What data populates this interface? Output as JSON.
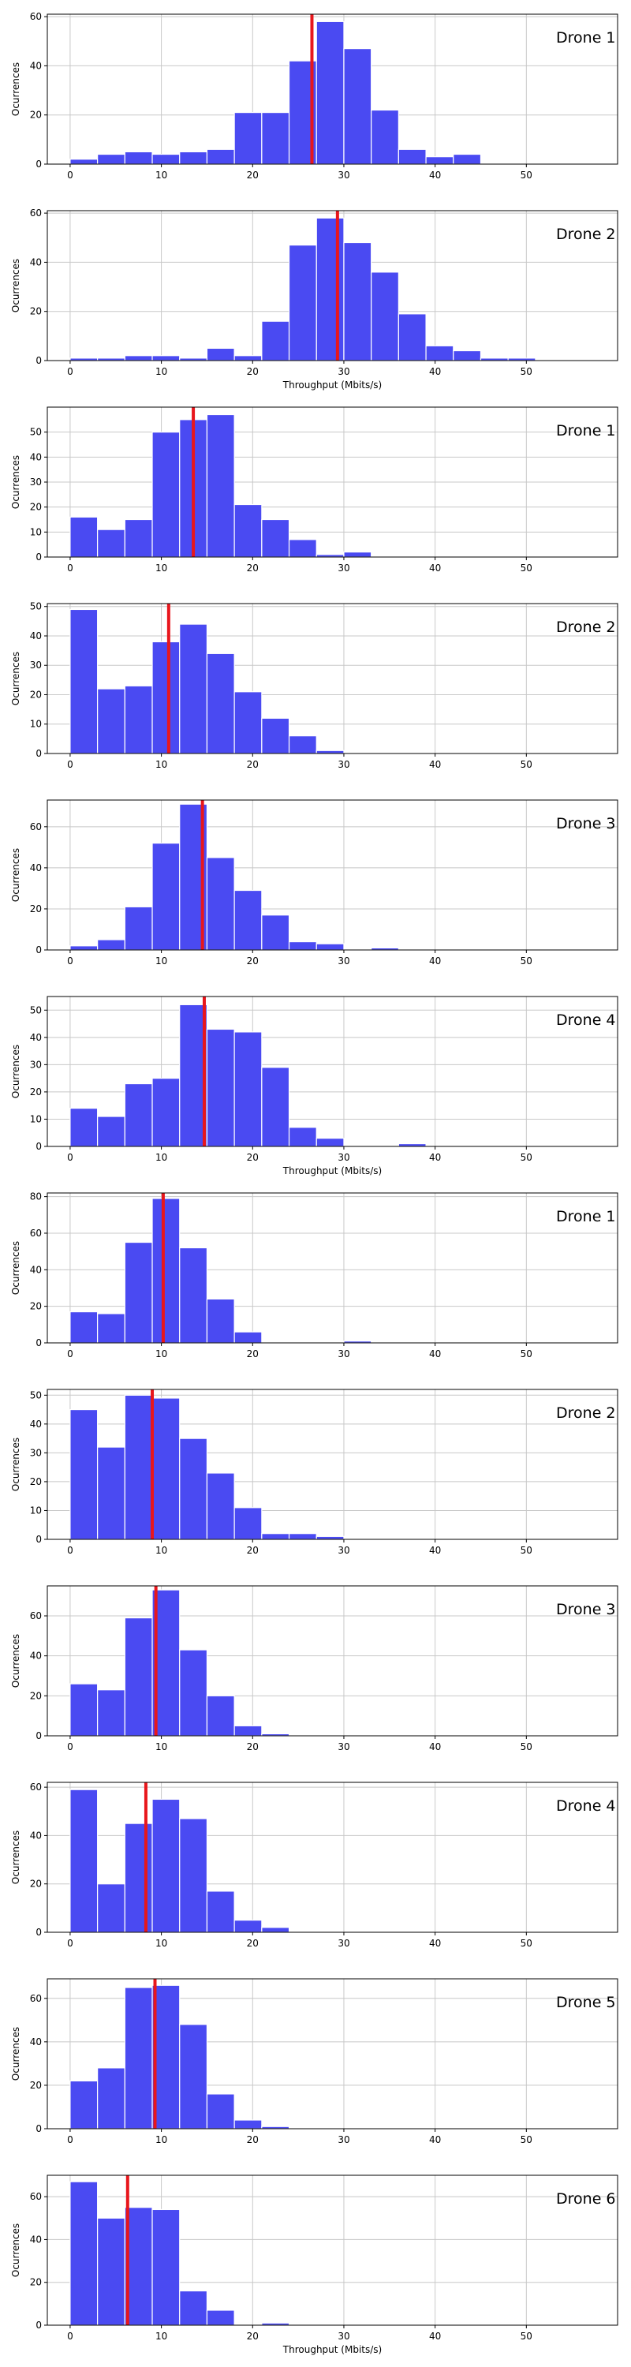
{
  "chart_data": [
    {
      "type": "bar",
      "title": "",
      "label": "Drone 1",
      "xlabel": "",
      "ylabel": "Ocurrences",
      "xlim": [
        -2.5,
        60
      ],
      "ylim": [
        0,
        61
      ],
      "yticks": [
        0,
        20,
        40,
        60
      ],
      "xticks": [
        0,
        10,
        20,
        30,
        40,
        50
      ],
      "bin_width": 3,
      "bin_starts": [
        0,
        3,
        6,
        9,
        12,
        15,
        18,
        21,
        24,
        27,
        30,
        33,
        36,
        39,
        42
      ],
      "values": [
        2,
        4,
        5,
        4,
        5,
        6,
        21,
        21,
        42,
        58,
        47,
        22,
        6,
        3,
        4
      ],
      "mean_line": 26.5
    },
    {
      "type": "bar",
      "title": "",
      "label": "Drone 2",
      "xlabel": "Throughput (Mbits/s)",
      "ylabel": "Ocurrences",
      "xlim": [
        -2.5,
        60
      ],
      "ylim": [
        0,
        61
      ],
      "yticks": [
        0,
        20,
        40,
        60
      ],
      "xticks": [
        0,
        10,
        20,
        30,
        40,
        50
      ],
      "bin_width": 3,
      "bin_starts": [
        0,
        3,
        6,
        9,
        12,
        15,
        18,
        21,
        24,
        27,
        30,
        33,
        36,
        39,
        42,
        45,
        48
      ],
      "values": [
        1,
        1,
        2,
        2,
        1,
        5,
        2,
        16,
        47,
        58,
        48,
        36,
        19,
        6,
        4,
        1,
        1
      ],
      "mean_line": 29.3
    },
    {
      "type": "bar",
      "title": "",
      "label": "Drone 1",
      "xlabel": "",
      "ylabel": "Ocurrences",
      "xlim": [
        -2.5,
        60
      ],
      "ylim": [
        0,
        60
      ],
      "yticks": [
        0,
        10,
        20,
        30,
        40,
        50
      ],
      "xticks": [
        0,
        10,
        20,
        30,
        40,
        50
      ],
      "bin_width": 3,
      "bin_starts": [
        0,
        3,
        6,
        9,
        12,
        15,
        18,
        21,
        24,
        27,
        30
      ],
      "values": [
        16,
        11,
        15,
        50,
        55,
        57,
        21,
        15,
        7,
        1,
        2
      ],
      "mean_line": 13.5
    },
    {
      "type": "bar",
      "title": "",
      "label": "Drone 2",
      "xlabel": "",
      "ylabel": "Ocurrences",
      "xlim": [
        -2.5,
        60
      ],
      "ylim": [
        0,
        51
      ],
      "yticks": [
        0,
        10,
        20,
        30,
        40,
        50
      ],
      "xticks": [
        0,
        10,
        20,
        30,
        40,
        50
      ],
      "bin_width": 3,
      "bin_starts": [
        0,
        3,
        6,
        9,
        12,
        15,
        18,
        21,
        24,
        27
      ],
      "values": [
        49,
        22,
        23,
        38,
        44,
        34,
        21,
        12,
        6,
        1
      ],
      "mean_line": 10.8
    },
    {
      "type": "bar",
      "title": "",
      "label": "Drone 3",
      "xlabel": "",
      "ylabel": "Ocurrences",
      "xlim": [
        -2.5,
        60
      ],
      "ylim": [
        0,
        73
      ],
      "yticks": [
        0,
        20,
        40,
        60
      ],
      "xticks": [
        0,
        10,
        20,
        30,
        40,
        50
      ],
      "bin_width": 3,
      "bin_starts": [
        0,
        3,
        6,
        9,
        12,
        15,
        18,
        21,
        24,
        27,
        30,
        33
      ],
      "values": [
        2,
        5,
        21,
        52,
        71,
        45,
        29,
        17,
        4,
        3,
        0,
        1
      ],
      "mean_line": 14.5
    },
    {
      "type": "bar",
      "title": "",
      "label": "Drone 4",
      "xlabel": "Throughput (Mbits/s)",
      "ylabel": "Ocurrences",
      "xlim": [
        -2.5,
        60
      ],
      "ylim": [
        0,
        55
      ],
      "yticks": [
        0,
        10,
        20,
        30,
        40,
        50
      ],
      "xticks": [
        0,
        10,
        20,
        30,
        40,
        50
      ],
      "bin_width": 3,
      "bin_starts": [
        0,
        3,
        6,
        9,
        12,
        15,
        18,
        21,
        24,
        27,
        30,
        33,
        36
      ],
      "values": [
        14,
        11,
        23,
        25,
        52,
        43,
        42,
        29,
        7,
        3,
        0,
        0,
        1
      ],
      "mean_line": 14.7
    },
    {
      "type": "bar",
      "title": "",
      "label": "Drone 1",
      "xlabel": "",
      "ylabel": "Ocurrences",
      "xlim": [
        -2.5,
        60
      ],
      "ylim": [
        0,
        82
      ],
      "yticks": [
        0,
        20,
        40,
        60,
        80
      ],
      "xticks": [
        0,
        10,
        20,
        30,
        40,
        50
      ],
      "bin_width": 3,
      "bin_starts": [
        0,
        3,
        6,
        9,
        12,
        15,
        18,
        21,
        24,
        27,
        30
      ],
      "values": [
        17,
        16,
        55,
        79,
        52,
        24,
        6,
        0,
        0,
        0,
        1
      ],
      "mean_line": 10.2
    },
    {
      "type": "bar",
      "title": "",
      "label": "Drone 2",
      "xlabel": "",
      "ylabel": "Ocurrences",
      "xlim": [
        -2.5,
        60
      ],
      "ylim": [
        0,
        52
      ],
      "yticks": [
        0,
        10,
        20,
        30,
        40,
        50
      ],
      "xticks": [
        0,
        10,
        20,
        30,
        40,
        50
      ],
      "bin_width": 3,
      "bin_starts": [
        0,
        3,
        6,
        9,
        12,
        15,
        18,
        21,
        24,
        27
      ],
      "values": [
        45,
        32,
        50,
        49,
        35,
        23,
        11,
        2,
        2,
        1
      ],
      "mean_line": 9.0
    },
    {
      "type": "bar",
      "title": "",
      "label": "Drone 3",
      "xlabel": "",
      "ylabel": "Ocurrences",
      "xlim": [
        -2.5,
        60
      ],
      "ylim": [
        0,
        75
      ],
      "yticks": [
        0,
        20,
        40,
        60
      ],
      "xticks": [
        0,
        10,
        20,
        30,
        40,
        50
      ],
      "bin_width": 3,
      "bin_starts": [
        0,
        3,
        6,
        9,
        12,
        15,
        18,
        21
      ],
      "values": [
        26,
        23,
        59,
        73,
        43,
        20,
        5,
        1
      ],
      "mean_line": 9.4
    },
    {
      "type": "bar",
      "title": "",
      "label": "Drone 4",
      "xlabel": "",
      "ylabel": "Ocurrences",
      "xlim": [
        -2.5,
        60
      ],
      "ylim": [
        0,
        62
      ],
      "yticks": [
        0,
        20,
        40,
        60
      ],
      "xticks": [
        0,
        10,
        20,
        30,
        40,
        50
      ],
      "bin_width": 3,
      "bin_starts": [
        0,
        3,
        6,
        9,
        12,
        15,
        18,
        21
      ],
      "values": [
        59,
        20,
        45,
        55,
        47,
        17,
        5,
        2
      ],
      "mean_line": 8.3
    },
    {
      "type": "bar",
      "title": "",
      "label": "Drone 5",
      "xlabel": "",
      "ylabel": "Ocurrences",
      "xlim": [
        -2.5,
        60
      ],
      "ylim": [
        0,
        69
      ],
      "yticks": [
        0,
        20,
        40,
        60
      ],
      "xticks": [
        0,
        10,
        20,
        30,
        40,
        50
      ],
      "bin_width": 3,
      "bin_starts": [
        0,
        3,
        6,
        9,
        12,
        15,
        18,
        21
      ],
      "values": [
        22,
        28,
        65,
        66,
        48,
        16,
        4,
        1
      ],
      "mean_line": 9.3
    },
    {
      "type": "bar",
      "title": "",
      "label": "Drone 6",
      "xlabel": "Throughput (Mbits/s)",
      "ylabel": "Ocurrences",
      "xlim": [
        -2.5,
        60
      ],
      "ylim": [
        0,
        70
      ],
      "yticks": [
        0,
        20,
        40,
        60
      ],
      "xticks": [
        0,
        10,
        20,
        30,
        40,
        50
      ],
      "bin_width": 3,
      "bin_starts": [
        0,
        3,
        6,
        9,
        12,
        15,
        18,
        21
      ],
      "values": [
        67,
        50,
        55,
        54,
        16,
        7,
        0,
        1
      ],
      "mean_line": 6.3
    }
  ],
  "colors": {
    "bar": "#4a4af2",
    "bar_edge": "#ffffff",
    "mean_line": "#e8161c",
    "grid": "#c8c8c8",
    "axis": "#000000"
  }
}
